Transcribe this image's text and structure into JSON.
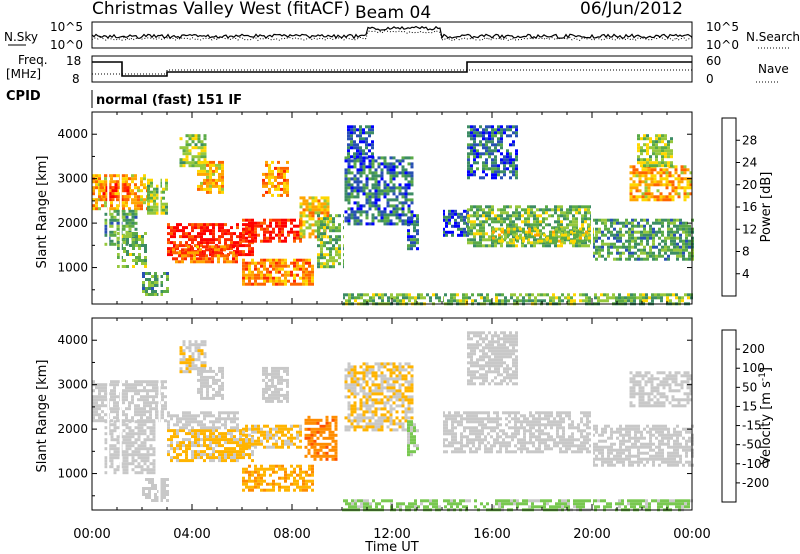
{
  "header": {
    "title": "Christmas Valley West (fitACF)",
    "beam": "Beam 04",
    "date": "06/Jun/2012"
  },
  "noise_panel": {
    "left_label": "N.Sky",
    "left_ticks": [
      "10^5",
      "10^0"
    ],
    "right_label": "N.Search",
    "right_ticks": [
      "10^5",
      "10^0"
    ]
  },
  "freq_panel": {
    "left_label_1": "Freq.",
    "left_label_2": "[MHz]",
    "left_ticks": [
      "18",
      "8"
    ],
    "right_label": "Nave",
    "right_ticks": [
      "60",
      "0"
    ]
  },
  "cpid": {
    "label": "CPID",
    "mode": "normal (fast) 151 IF"
  },
  "colors": {
    "power_scale": [
      "#0000ff",
      "#2850b4",
      "#3c8c64",
      "#5aaa46",
      "#96c83c",
      "#ffd700",
      "#ffa500",
      "#ff6400",
      "#ff2800",
      "#ff0000"
    ],
    "velocity_scale": [
      "#2846a0",
      "#3264b4",
      "#46a028",
      "#78c850",
      "#c8c8c8",
      "#c8c8c8",
      "#ffb400",
      "#ff8c00",
      "#ff5000",
      "#ff0000"
    ]
  },
  "chart_data": [
    {
      "type": "heatmap",
      "title": "",
      "quantity": "Power",
      "ylabel": "Slant Range [km]",
      "xlabel": "Time UT",
      "x_ticks": [
        "00:00",
        "04:00",
        "08:00",
        "12:00",
        "16:00",
        "20:00",
        "00:00"
      ],
      "y_ticks": [
        1000,
        2000,
        3000,
        4000
      ],
      "ylim": [
        180,
        4500
      ],
      "xlim_hours": [
        0,
        24
      ],
      "colorbar": {
        "label": "Power [dB]",
        "ticks": [
          "4",
          "8",
          "12",
          "16",
          "20",
          "24",
          "28"
        ],
        "range": [
          0,
          32
        ]
      },
      "regions": [
        {
          "t": [
            0.0,
            2.2
          ],
          "r": [
            2300,
            3100
          ],
          "v": 20
        },
        {
          "t": [
            0.3,
            1.5
          ],
          "r": [
            2500,
            2900
          ],
          "v": 26
        },
        {
          "t": [
            0.5,
            1.8
          ],
          "r": [
            1500,
            2300
          ],
          "v": 10
        },
        {
          "t": [
            1.0,
            2.2
          ],
          "r": [
            1000,
            1800
          ],
          "v": 12
        },
        {
          "t": [
            2.2,
            3.0
          ],
          "r": [
            2200,
            3000
          ],
          "v": 14
        },
        {
          "t": [
            2.0,
            3.0
          ],
          "r": [
            400,
            900
          ],
          "v": 10
        },
        {
          "t": [
            3.0,
            6.4
          ],
          "r": [
            1300,
            2000
          ],
          "v": 29
        },
        {
          "t": [
            3.2,
            5.8
          ],
          "r": [
            1100,
            1500
          ],
          "v": 24
        },
        {
          "t": [
            6.0,
            8.3
          ],
          "r": [
            1600,
            2100
          ],
          "v": 29
        },
        {
          "t": [
            8.3,
            9.5
          ],
          "r": [
            1700,
            2600
          ],
          "v": 19
        },
        {
          "t": [
            6.0,
            8.8
          ],
          "r": [
            600,
            1200
          ],
          "v": 22
        },
        {
          "t": [
            4.2,
            5.2
          ],
          "r": [
            2700,
            3400
          ],
          "v": 20
        },
        {
          "t": [
            6.8,
            7.8
          ],
          "r": [
            2600,
            3400
          ],
          "v": 22
        },
        {
          "t": [
            3.5,
            4.5
          ],
          "r": [
            3300,
            4000
          ],
          "v": 14
        },
        {
          "t": [
            9.0,
            10.0
          ],
          "r": [
            1000,
            2200
          ],
          "v": 12
        },
        {
          "t": [
            10.1,
            12.8
          ],
          "r": [
            2000,
            3500
          ],
          "v": 7
        },
        {
          "t": [
            10.2,
            11.2
          ],
          "r": [
            3500,
            4200
          ],
          "v": 5
        },
        {
          "t": [
            12.6,
            13.0
          ],
          "r": [
            1400,
            2200
          ],
          "v": 6
        },
        {
          "t": [
            14.0,
            15.0
          ],
          "r": [
            1700,
            2300
          ],
          "v": 5
        },
        {
          "t": [
            15.0,
            20.0
          ],
          "r": [
            1500,
            2400
          ],
          "v": 12
        },
        {
          "t": [
            16.0,
            20.0
          ],
          "r": [
            1600,
            1900
          ],
          "v": 15
        },
        {
          "t": [
            15.0,
            17.0
          ],
          "r": [
            3000,
            4200
          ],
          "v": 6
        },
        {
          "t": [
            20.0,
            24.0
          ],
          "r": [
            1200,
            2100
          ],
          "v": 10
        },
        {
          "t": [
            21.5,
            24.0
          ],
          "r": [
            2500,
            3300
          ],
          "v": 20
        },
        {
          "t": [
            21.8,
            23.2
          ],
          "r": [
            3300,
            4000
          ],
          "v": 14
        },
        {
          "t": [
            10.0,
            24.0
          ],
          "r": [
            200,
            420
          ],
          "v": 12
        }
      ]
    },
    {
      "type": "heatmap",
      "title": "",
      "quantity": "Velocity",
      "ylabel": "Slant Range [km]",
      "xlabel": "Time UT",
      "x_ticks": [
        "00:00",
        "04:00",
        "08:00",
        "12:00",
        "16:00",
        "20:00",
        "00:00"
      ],
      "y_ticks": [
        1000,
        2000,
        3000,
        4000
      ],
      "ylim": [
        180,
        4500
      ],
      "xlim_hours": [
        0,
        24
      ],
      "colorbar": {
        "label": "Velocity [m s^-1]",
        "ticks": [
          "200",
          "100",
          "50",
          "15",
          "-15",
          "-50",
          "-100",
          "-200"
        ],
        "range": [
          -250,
          250
        ]
      },
      "regions": [
        {
          "t": [
            0.0,
            3.0
          ],
          "r": [
            2200,
            3100
          ],
          "v": 0
        },
        {
          "t": [
            0.5,
            2.5
          ],
          "r": [
            1000,
            2200
          ],
          "v": 0
        },
        {
          "t": [
            2.0,
            3.0
          ],
          "r": [
            400,
            900
          ],
          "v": 0
        },
        {
          "t": [
            3.0,
            6.4
          ],
          "r": [
            1300,
            2000
          ],
          "v": -60
        },
        {
          "t": [
            3.0,
            5.8
          ],
          "r": [
            2000,
            2400
          ],
          "v": 0
        },
        {
          "t": [
            6.0,
            8.3
          ],
          "r": [
            1600,
            2100
          ],
          "v": -60
        },
        {
          "t": [
            6.0,
            8.8
          ],
          "r": [
            600,
            1200
          ],
          "v": -90
        },
        {
          "t": [
            8.5,
            9.8
          ],
          "r": [
            1300,
            2300
          ],
          "v": -130
        },
        {
          "t": [
            4.2,
            5.2
          ],
          "r": [
            2700,
            3400
          ],
          "v": 0
        },
        {
          "t": [
            6.8,
            7.8
          ],
          "r": [
            2600,
            3400
          ],
          "v": 0
        },
        {
          "t": [
            3.5,
            4.5
          ],
          "r": [
            3300,
            4000
          ],
          "v": -40
        },
        {
          "t": [
            10.1,
            12.8
          ],
          "r": [
            2000,
            3500
          ],
          "v": -50
        },
        {
          "t": [
            12.6,
            13.0
          ],
          "r": [
            1400,
            2200
          ],
          "v": 60
        },
        {
          "t": [
            14.0,
            20.0
          ],
          "r": [
            1500,
            2400
          ],
          "v": 0
        },
        {
          "t": [
            15.0,
            17.0
          ],
          "r": [
            3000,
            4200
          ],
          "v": 0
        },
        {
          "t": [
            20.0,
            24.0
          ],
          "r": [
            1200,
            2100
          ],
          "v": 0
        },
        {
          "t": [
            21.5,
            24.0
          ],
          "r": [
            2500,
            3300
          ],
          "v": 0
        },
        {
          "t": [
            10.0,
            24.0
          ],
          "r": [
            200,
            420
          ],
          "v": 70
        }
      ]
    }
  ]
}
